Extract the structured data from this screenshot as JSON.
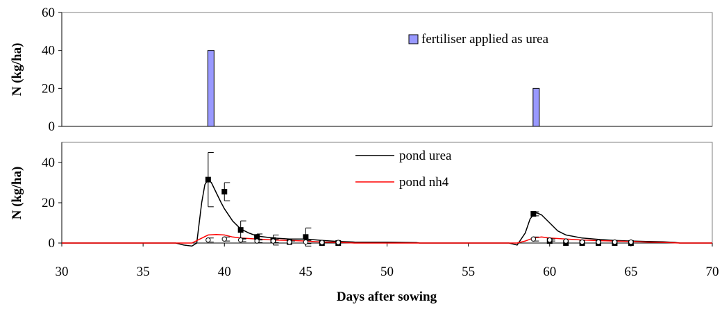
{
  "chart_data": [
    {
      "type": "bar",
      "title": "",
      "xlabel": "",
      "ylabel": "N (kg/ha)",
      "xlim": [
        30,
        70
      ],
      "ylim": [
        0,
        60
      ],
      "yticks": [
        "0",
        "20",
        "40",
        "60"
      ],
      "grid": false,
      "legend_position": "top-right",
      "series": [
        {
          "name": "fertiliser applied as urea",
          "color": "#9999ff",
          "points": [
            {
              "x": 39,
              "y": 40
            },
            {
              "x": 59,
              "y": 20
            }
          ]
        }
      ]
    },
    {
      "type": "line",
      "title": "",
      "xlabel": "Days after sowing",
      "ylabel": "N (kg/ha)",
      "xlim": [
        30,
        70
      ],
      "ylim": [
        0,
        50
      ],
      "xticks": [
        "30",
        "35",
        "40",
        "45",
        "50",
        "55",
        "60",
        "65",
        "70"
      ],
      "yticks": [
        "0",
        "20",
        "40"
      ],
      "grid": false,
      "legend_position": "top-center",
      "series": [
        {
          "name": "pond urea",
          "color": "#000000",
          "points": [
            [
              30,
              0
            ],
            [
              37,
              0
            ],
            [
              37.5,
              -1
            ],
            [
              38,
              -1.5
            ],
            [
              38.3,
              0
            ],
            [
              38.6,
              20
            ],
            [
              38.8,
              29
            ],
            [
              39,
              31.5
            ],
            [
              39.2,
              30
            ],
            [
              39.5,
              25
            ],
            [
              39.8,
              20
            ],
            [
              40,
              17
            ],
            [
              40.5,
              11
            ],
            [
              41,
              7
            ],
            [
              41.5,
              5
            ],
            [
              42,
              3.5
            ],
            [
              43,
              2.5
            ],
            [
              44,
              2
            ],
            [
              45,
              2
            ],
            [
              46,
              1.3
            ],
            [
              47,
              0.8
            ],
            [
              48,
              0.5
            ],
            [
              49,
              0.4
            ],
            [
              50,
              0.4
            ],
            [
              51,
              0.3
            ],
            [
              51.8,
              0.2
            ],
            [
              52,
              0
            ],
            [
              57.5,
              0
            ],
            [
              58,
              -1
            ],
            [
              58.5,
              5
            ],
            [
              58.8,
              12
            ],
            [
              59,
              14
            ],
            [
              59.2,
              15
            ],
            [
              59.5,
              14
            ],
            [
              60,
              10
            ],
            [
              60.5,
              6
            ],
            [
              61,
              4
            ],
            [
              62,
              2.5
            ],
            [
              63,
              1.8
            ],
            [
              64,
              1.3
            ],
            [
              65,
              1
            ],
            [
              66,
              0.8
            ],
            [
              67,
              0.6
            ],
            [
              67.7,
              0.3
            ],
            [
              68,
              0
            ],
            [
              70,
              0
            ]
          ]
        },
        {
          "name": "pond nh4",
          "color": "#ff0000",
          "points": [
            [
              30,
              0
            ],
            [
              38,
              0
            ],
            [
              38.5,
              2
            ],
            [
              39,
              4
            ],
            [
              39.5,
              4.2
            ],
            [
              40,
              4
            ],
            [
              40.5,
              3
            ],
            [
              41,
              2.5
            ],
            [
              42,
              2
            ],
            [
              43,
              1.5
            ],
            [
              44,
              1.3
            ],
            [
              45,
              1
            ],
            [
              46,
              0.5
            ],
            [
              47,
              0.3
            ],
            [
              48,
              0
            ],
            [
              58,
              0
            ],
            [
              58.5,
              1
            ],
            [
              59,
              2.5
            ],
            [
              59.5,
              3
            ],
            [
              60,
              2.5
            ],
            [
              61,
              2
            ],
            [
              62,
              1.5
            ],
            [
              63,
              1.2
            ],
            [
              64,
              1
            ],
            [
              65,
              0.8
            ],
            [
              66,
              0.5
            ],
            [
              67,
              0.3
            ],
            [
              68,
              0
            ],
            [
              70,
              0
            ]
          ]
        },
        {
          "name": "",
          "marker": "square",
          "color": "#000000",
          "points": [
            {
              "x": 39,
              "y": 31.5,
              "err": 13.5
            },
            {
              "x": 40,
              "y": 25.5,
              "err": 4.5
            },
            {
              "x": 41,
              "y": 6.5,
              "err": 4.5
            },
            {
              "x": 42,
              "y": 3,
              "err": 1.5
            },
            {
              "x": 43,
              "y": 1.5,
              "err": 2.5
            },
            {
              "x": 44,
              "y": 0.5,
              "err": 0
            },
            {
              "x": 45,
              "y": 3,
              "err": 4.5
            },
            {
              "x": 46,
              "y": 0,
              "err": 0
            },
            {
              "x": 47,
              "y": 0,
              "err": 0
            },
            {
              "x": 59,
              "y": 14.5,
              "err": 1
            },
            {
              "x": 60,
              "y": 1,
              "err": 0
            },
            {
              "x": 61,
              "y": 0,
              "err": 0
            },
            {
              "x": 62,
              "y": 0,
              "err": 0
            },
            {
              "x": 63,
              "y": 0,
              "err": 0
            },
            {
              "x": 64,
              "y": 0,
              "err": 0
            },
            {
              "x": 65,
              "y": 0,
              "err": 0
            }
          ]
        },
        {
          "name": "",
          "marker": "circle-open",
          "color": "#000000",
          "points": [
            {
              "x": 39,
              "y": 1.5,
              "err": 1
            },
            {
              "x": 40,
              "y": 2,
              "err": 1
            },
            {
              "x": 41,
              "y": 1.5,
              "err": 0.8
            },
            {
              "x": 42,
              "y": 1,
              "err": 0.8
            },
            {
              "x": 43,
              "y": 1,
              "err": 0.8
            },
            {
              "x": 44,
              "y": 0.5,
              "err": 0.5
            },
            {
              "x": 45,
              "y": 0.5,
              "err": 0.8
            },
            {
              "x": 46,
              "y": 0.3,
              "err": 0
            },
            {
              "x": 47,
              "y": 0.3,
              "err": 0
            },
            {
              "x": 59,
              "y": 2,
              "err": 1
            },
            {
              "x": 60,
              "y": 1.5,
              "err": 0.5
            },
            {
              "x": 61,
              "y": 1,
              "err": 0
            },
            {
              "x": 62,
              "y": 0.5,
              "err": 0
            },
            {
              "x": 63,
              "y": 0.5,
              "err": 0
            },
            {
              "x": 64,
              "y": 0.5,
              "err": 0
            },
            {
              "x": 65,
              "y": 0.5,
              "err": 0
            }
          ]
        }
      ]
    }
  ]
}
